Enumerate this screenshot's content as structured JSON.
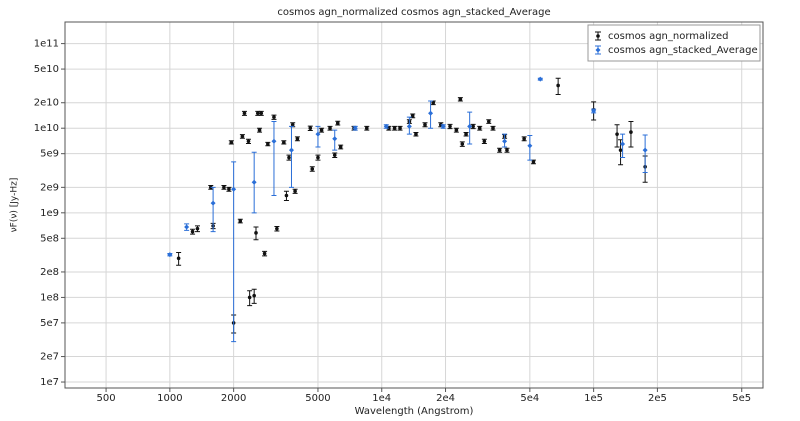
{
  "chart_data": {
    "type": "scatter",
    "title": "cosmos agn_normalized cosmos agn_stacked_Average",
    "x_label": "Wavelength (Angstrom)",
    "y_label": "νF(ν) [Jy-Hz]",
    "log_x": true,
    "log_y": true,
    "grid": true,
    "legend": "upper right",
    "xlim": [
      320,
      630000
    ],
    "ylim": [
      8500000,
      180000000000
    ],
    "xticks": [
      500,
      1000,
      2000,
      5000,
      {
        "value": 10000,
        "label": "1e4"
      },
      {
        "value": 20000,
        "label": "2e4"
      },
      {
        "value": 50000,
        "label": "5e4"
      },
      {
        "value": 100000,
        "label": "1e5"
      },
      {
        "value": 200000,
        "label": "2e5"
      },
      {
        "value": 500000,
        "label": "5e5"
      }
    ],
    "yticks": [
      {
        "value": 10000000,
        "label": "1e7"
      },
      {
        "value": 20000000,
        "label": "2e7"
      },
      {
        "value": 50000000,
        "label": "5e7"
      },
      {
        "value": 100000000,
        "label": "1e8"
      },
      {
        "value": 200000000,
        "label": "2e8"
      },
      {
        "value": 500000000,
        "label": "5e8"
      },
      {
        "value": 1000000000,
        "label": "1e9"
      },
      {
        "value": 2000000000,
        "label": "2e9"
      },
      {
        "value": 5000000000,
        "label": "5e9"
      },
      {
        "value": 10000000000,
        "label": "1e10"
      },
      {
        "value": 20000000000,
        "label": "2e10"
      },
      {
        "value": 50000000000,
        "label": "5e10"
      },
      {
        "value": 100000000000,
        "label": "1e11"
      }
    ],
    "series": [
      {
        "name": "cosmos agn_normalized",
        "color": "#111111",
        "marker": "circle",
        "x": [
          1100,
          1280,
          1350,
          1560,
          1600,
          1800,
          1900,
          1950,
          2000,
          2150,
          2200,
          2250,
          2350,
          2380,
          2500,
          2550,
          2600,
          2700,
          2650,
          2800,
          2900,
          3100,
          3200,
          3450,
          3550,
          3650,
          3800,
          3900,
          4000,
          4600,
          4700,
          5000,
          5200,
          5700,
          6000,
          6200,
          6400,
          7400,
          8500,
          10800,
          11500,
          12200,
          13500,
          14000,
          14500,
          16000,
          17500,
          19000,
          21000,
          22500,
          23500,
          24000,
          25000,
          27000,
          29000,
          30500,
          32000,
          33500,
          36000,
          38000,
          39000,
          47000,
          52000,
          68000,
          100000,
          129000,
          134000,
          150000,
          175000
        ],
        "values": [
          290000000,
          600000000,
          650000000,
          2000000000,
          700000000,
          2000000000,
          1900000000,
          6800000000,
          50000000,
          800000000,
          8000000000,
          15000000000,
          7000000000,
          100000000,
          105000000,
          580000000,
          15000000000,
          15000000000,
          9500000000,
          330000000,
          6500000000,
          13500000000,
          650000000,
          6800000000,
          1600000000,
          4500000000,
          11000000000,
          1800000000,
          7500000000,
          10000000000,
          3300000000,
          4500000000,
          9500000000,
          10000000000,
          4800000000,
          11500000000,
          6000000000,
          10000000000,
          10000000000,
          10000000000,
          10000000000,
          10000000000,
          12000000000,
          14000000000,
          8500000000,
          11000000000,
          20000000000,
          11000000000,
          10500000000,
          9500000000,
          22000000000,
          6500000000,
          8500000000,
          10500000000,
          10000000000,
          7000000000,
          12000000000,
          10000000000,
          5500000000,
          8000000000,
          5500000000,
          7500000000,
          4000000000,
          32000000000,
          16500000000,
          8500000000,
          5500000000,
          9000000000,
          3500000000
        ],
        "error_minus": [
          50000000,
          40000000,
          50000000,
          100000000,
          50000000,
          100000000,
          100000000,
          300000000,
          12000000,
          40000000,
          400000000,
          800000000,
          400000000,
          20000000,
          20000000,
          100000000,
          800000000,
          800000000,
          500000000,
          20000000,
          300000000,
          800000000,
          40000000,
          300000000,
          200000000,
          300000000,
          600000000,
          100000000,
          400000000,
          600000000,
          200000000,
          300000000,
          500000000,
          500000000,
          300000000,
          600000000,
          300000000,
          500000000,
          500000000,
          500000000,
          500000000,
          500000000,
          600000000,
          700000000,
          400000000,
          600000000,
          1000000000,
          600000000,
          600000000,
          500000000,
          1000000000,
          400000000,
          400000000,
          600000000,
          500000000,
          400000000,
          600000000,
          500000000,
          300000000,
          400000000,
          300000000,
          400000000,
          200000000,
          7000000000,
          4000000000,
          2500000000,
          1800000000,
          3000000000,
          1200000000
        ],
        "error_plus": [
          50000000,
          40000000,
          50000000,
          100000000,
          50000000,
          100000000,
          100000000,
          300000000,
          12000000,
          40000000,
          400000000,
          800000000,
          400000000,
          20000000,
          20000000,
          100000000,
          800000000,
          800000000,
          500000000,
          20000000,
          300000000,
          800000000,
          40000000,
          300000000,
          200000000,
          300000000,
          600000000,
          100000000,
          400000000,
          600000000,
          200000000,
          300000000,
          500000000,
          500000000,
          300000000,
          600000000,
          300000000,
          500000000,
          500000000,
          500000000,
          500000000,
          500000000,
          600000000,
          700000000,
          400000000,
          600000000,
          1000000000,
          600000000,
          600000000,
          500000000,
          1000000000,
          400000000,
          400000000,
          600000000,
          500000000,
          400000000,
          600000000,
          500000000,
          300000000,
          400000000,
          300000000,
          400000000,
          200000000,
          7000000000,
          4000000000,
          2500000000,
          1800000000,
          3000000000,
          1200000000
        ]
      },
      {
        "name": "cosmos agn_stacked_Average",
        "color": "#2b6fd8",
        "marker": "diamond",
        "x": [
          1000,
          1200,
          1600,
          2000,
          2500,
          3100,
          3750,
          5000,
          6000,
          7500,
          10500,
          13500,
          17000,
          19500,
          26000,
          38000,
          50000,
          56000,
          100000,
          137000,
          175000
        ],
        "values": [
          320000000,
          680000000,
          1300000000,
          1900000000,
          2300000000,
          7000000000,
          5500000000,
          8500000000,
          7500000000,
          10000000000,
          10500000000,
          10500000000,
          15000000000,
          10500000000,
          10500000000,
          7000000000,
          6200000000,
          38000000000,
          16000000000,
          6500000000,
          5500000000
        ],
        "error_minus": [
          10000000,
          60000000,
          700000000,
          1870000000,
          1300000000,
          5400000000,
          3500000000,
          2500000000,
          2000000000,
          500000000,
          500000000,
          2000000000,
          5000000000,
          500000000,
          4000000000,
          1000000000,
          2000000000,
          1000000000,
          800000000,
          2000000000,
          2500000000
        ],
        "error_plus": [
          10000000,
          60000000,
          700000000,
          2100000000,
          2900000000,
          5000000000,
          5000000000,
          2000000000,
          2000000000,
          500000000,
          500000000,
          3000000000,
          6000000000,
          500000000,
          5000000000,
          1500000000,
          2000000000,
          1000000000,
          800000000,
          2000000000,
          2800000000
        ]
      }
    ]
  }
}
